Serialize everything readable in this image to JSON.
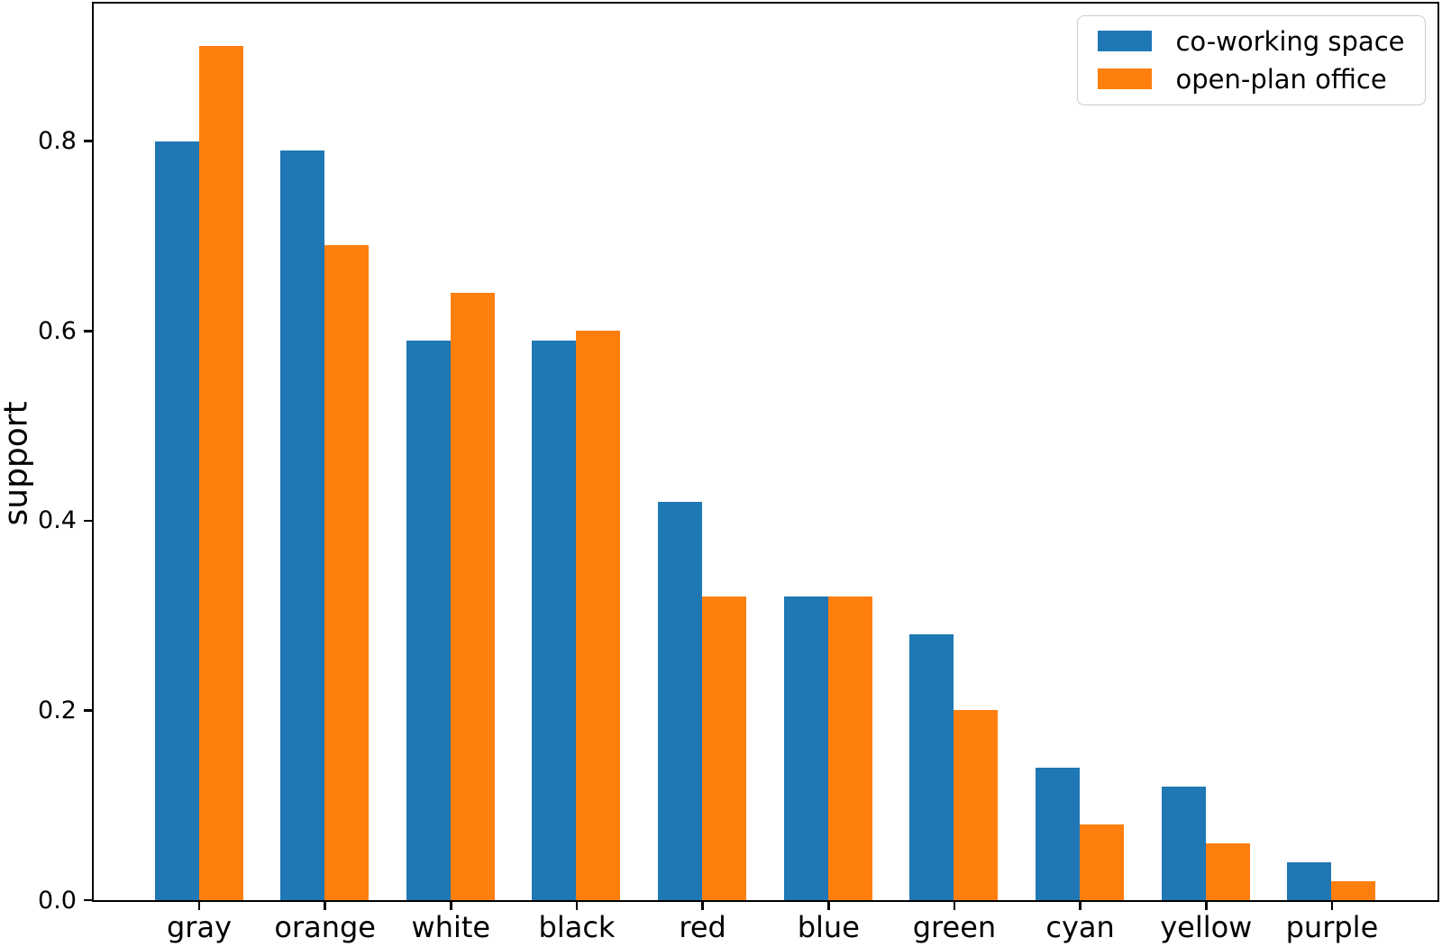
{
  "chart_data": {
    "type": "bar",
    "title": "",
    "xlabel": "",
    "ylabel": "support",
    "categories": [
      "gray",
      "orange",
      "white",
      "black",
      "red",
      "blue",
      "green",
      "cyan",
      "yellow",
      "purple"
    ],
    "series": [
      {
        "name": "co-working space",
        "color": "#1f77b4",
        "values": [
          0.8,
          0.79,
          0.59,
          0.59,
          0.42,
          0.32,
          0.28,
          0.14,
          0.12,
          0.04
        ]
      },
      {
        "name": "open-plan office",
        "color": "#ff7f0e",
        "values": [
          0.9,
          0.69,
          0.64,
          0.6,
          0.32,
          0.32,
          0.2,
          0.08,
          0.06,
          0.02
        ]
      }
    ],
    "ytick_labels": [
      "0.0",
      "0.2",
      "0.4",
      "0.6",
      "0.8"
    ],
    "ytick_values": [
      0.0,
      0.2,
      0.4,
      0.6,
      0.8
    ],
    "ylim": [
      0,
      0.945
    ],
    "legend_position": "upper right",
    "grid": false,
    "axis_color": "#000000",
    "legend_border_color": "#cccccc",
    "background_color": "#ffffff"
  }
}
